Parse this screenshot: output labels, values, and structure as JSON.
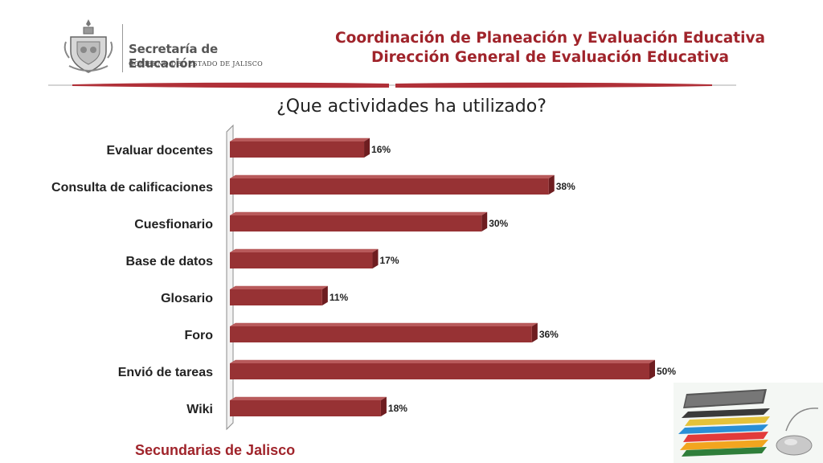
{
  "header": {
    "logo_name": "Secretaría de Educación",
    "logo_sub": "GOBIERNO DEL ESTADO DE JALISCO",
    "title_line1": "Coordinación de Planeación y Evaluación Educativa",
    "title_line2": "Dirección General de Evaluación Educativa"
  },
  "colors": {
    "bar": "#973234",
    "bar_top": "#b85a5b",
    "bar_side": "#6e1d20",
    "accent": "#a0242b"
  },
  "footer": {
    "text": "Secundarias de Jalisco"
  },
  "icons": {
    "emblem": "jalisco-emblem-icon",
    "books": "books-stack-icon",
    "mouse": "computer-mouse-icon"
  },
  "chart_data": {
    "type": "bar",
    "orientation": "horizontal",
    "title": "¿Que actividades ha utilizado?",
    "categories": [
      "Evaluar docentes",
      "Consulta de calificaciones",
      "Cuesfionario",
      "Base de datos",
      "Glosario",
      "Foro",
      "Envió de tareas",
      "Wiki"
    ],
    "values": [
      16,
      38,
      30,
      17,
      11,
      36,
      50,
      18
    ],
    "value_labels": [
      "16%",
      "38%",
      "30%",
      "17%",
      "11%",
      "36%",
      "50%",
      "18%"
    ],
    "xlim": [
      0,
      50
    ],
    "grid": false,
    "legend": "none"
  }
}
